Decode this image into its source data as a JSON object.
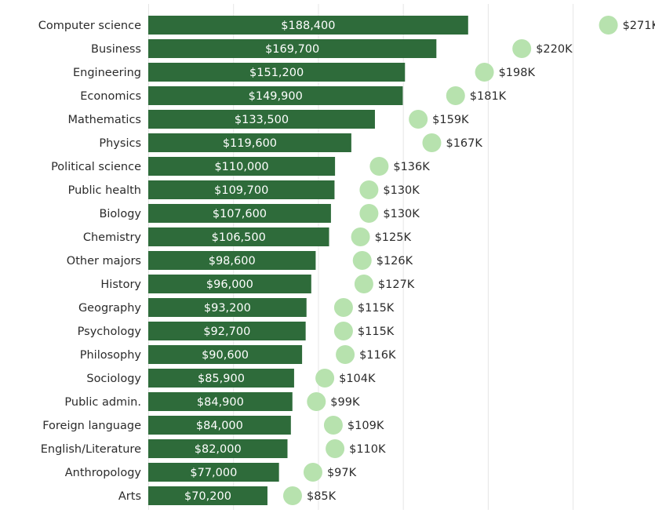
{
  "chart_data": {
    "type": "bar",
    "categories": [
      "Computer science",
      "Business",
      "Engineering",
      "Economics",
      "Mathematics",
      "Physics",
      "Political science",
      "Public health",
      "Biology",
      "Chemistry",
      "Other majors",
      "History",
      "Geography",
      "Psychology",
      "Philosophy",
      "Sociology",
      "Public admin.",
      "Foreign language",
      "English/Literature",
      "Anthropology",
      "Arts"
    ],
    "series": [
      {
        "values": [
          188400,
          169700,
          151200,
          149900,
          133500,
          119600,
          110000,
          109700,
          107600,
          106500,
          98600,
          96000,
          93200,
          92700,
          90600,
          85900,
          84900,
          84000,
          82000,
          77000,
          70200
        ],
        "labels": [
          "$188,400",
          "$169,700",
          "$151,200",
          "$149,900",
          "$133,500",
          "$119,600",
          "$110,000",
          "$109,700",
          "$107,600",
          "$106,500",
          "$98,600",
          "$96,000",
          "$93,200",
          "$92,700",
          "$90,600",
          "$85,900",
          "$84,900",
          "$84,000",
          "$82,000",
          "$77,000",
          "$70,200"
        ],
        "color": "#2e6b3a"
      },
      {
        "values": [
          271000,
          220000,
          198000,
          181000,
          159000,
          167000,
          136000,
          130000,
          130000,
          125000,
          126000,
          127000,
          115000,
          115000,
          116000,
          104000,
          99000,
          109000,
          110000,
          97000,
          85000
        ],
        "labels": [
          "$271K",
          "$220K",
          "$198K",
          "$181K",
          "$159K",
          "$167K",
          "$136K",
          "$130K",
          "$130K",
          "$125K",
          "$126K",
          "$127K",
          "$115K",
          "$115K",
          "$116K",
          "$104K",
          "$99K",
          "$109K",
          "$110K",
          "$97K",
          "$85K"
        ],
        "color": "#b7e2ae",
        "mark": "dot"
      }
    ],
    "xlim": [
      0,
      275000
    ],
    "grid": true,
    "gridlines_at": [
      0,
      50000,
      100000,
      150000,
      200000,
      250000
    ]
  }
}
